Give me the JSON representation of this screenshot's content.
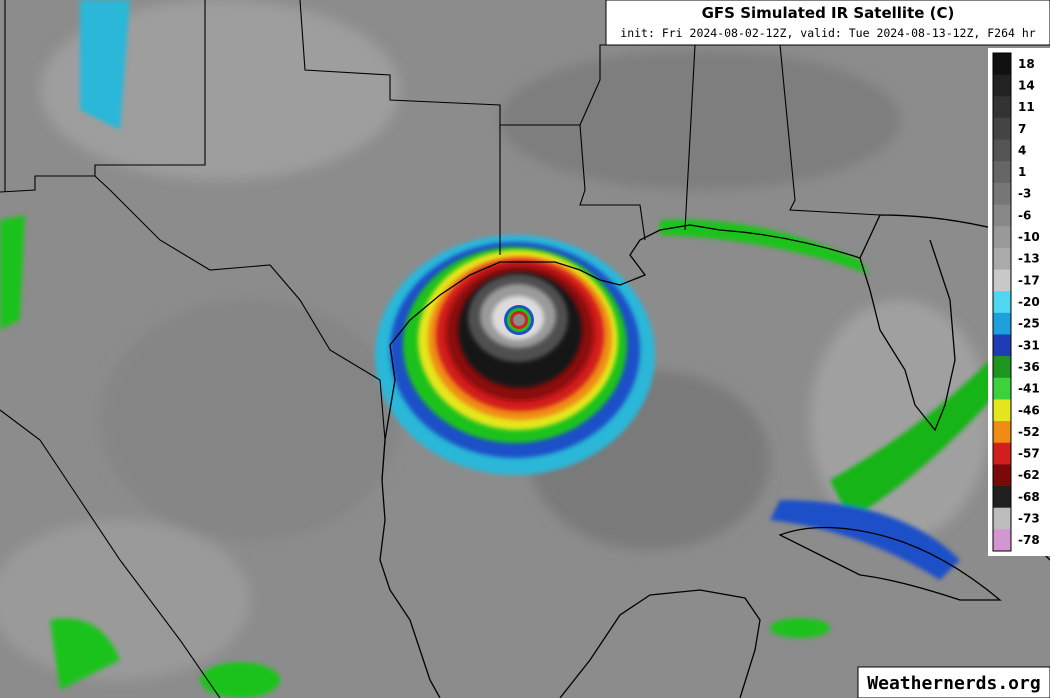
{
  "header": {
    "title": "GFS Simulated IR Satellite (C)",
    "subtitle": "init: Fri 2024-08-02-12Z, valid: Tue 2024-08-13-12Z, F264 hr"
  },
  "colorbar": {
    "labels": [
      "18",
      "14",
      "11",
      "7",
      "4",
      "1",
      "-3",
      "-6",
      "-10",
      "-13",
      "-17",
      "-20",
      "-25",
      "-31",
      "-36",
      "-41",
      "-46",
      "-52",
      "-57",
      "-62",
      "-68",
      "-73",
      "-78"
    ]
  },
  "watermark": "Weathernerds.org"
}
